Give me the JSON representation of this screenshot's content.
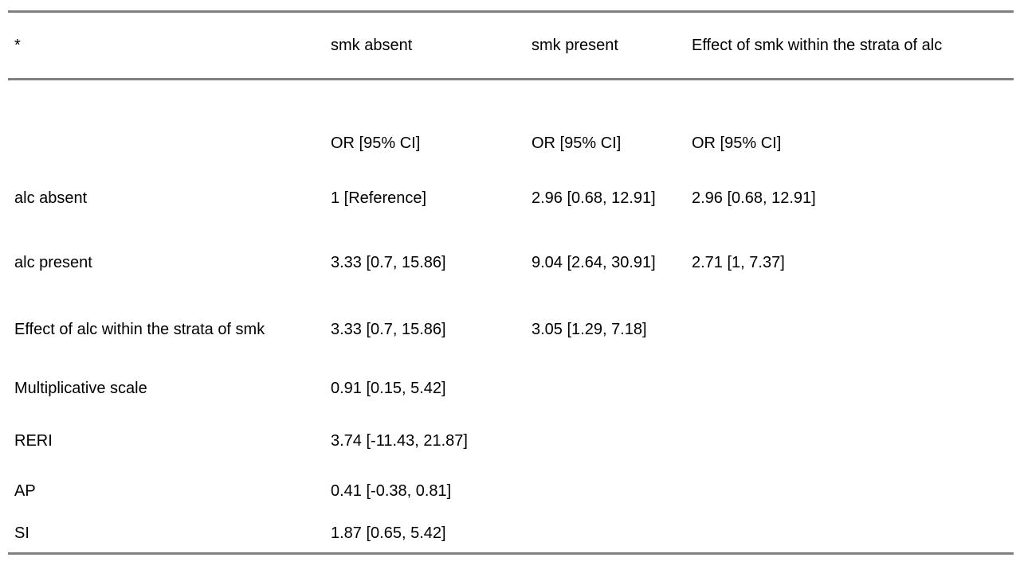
{
  "table": {
    "columns": [
      "*",
      "smk absent",
      "smk present",
      "Effect of smk within the strata of alc"
    ],
    "rows": [
      {
        "cells": [
          "",
          "OR [95% CI]",
          "OR [95% CI]",
          "OR [95% CI]"
        ]
      },
      {
        "cells": [
          "alc absent",
          "1 [Reference]",
          "2.96 [0.68, 12.91]",
          "2.96 [0.68, 12.91]"
        ]
      },
      {
        "cells": [
          "alc present",
          "3.33 [0.7, 15.86]",
          "9.04 [2.64, 30.91]",
          "2.71 [1, 7.37]"
        ]
      },
      {
        "cells": [
          "Effect of alc within the strata of smk",
          "3.33 [0.7, 15.86]",
          "3.05 [1.29, 7.18]",
          ""
        ]
      },
      {
        "cells": [
          "Multiplicative scale",
          "0.91 [0.15, 5.42]",
          "",
          ""
        ]
      },
      {
        "cells": [
          "RERI",
          "3.74 [-11.43, 21.87]",
          "",
          ""
        ]
      },
      {
        "cells": [
          "AP",
          "0.41 [-0.38, 0.81]",
          "",
          ""
        ]
      },
      {
        "cells": [
          "SI",
          "1.87 [0.65, 5.42]",
          "",
          ""
        ]
      }
    ],
    "border_color": "#808080",
    "text_color": "#000000",
    "background_color": "#ffffff"
  }
}
